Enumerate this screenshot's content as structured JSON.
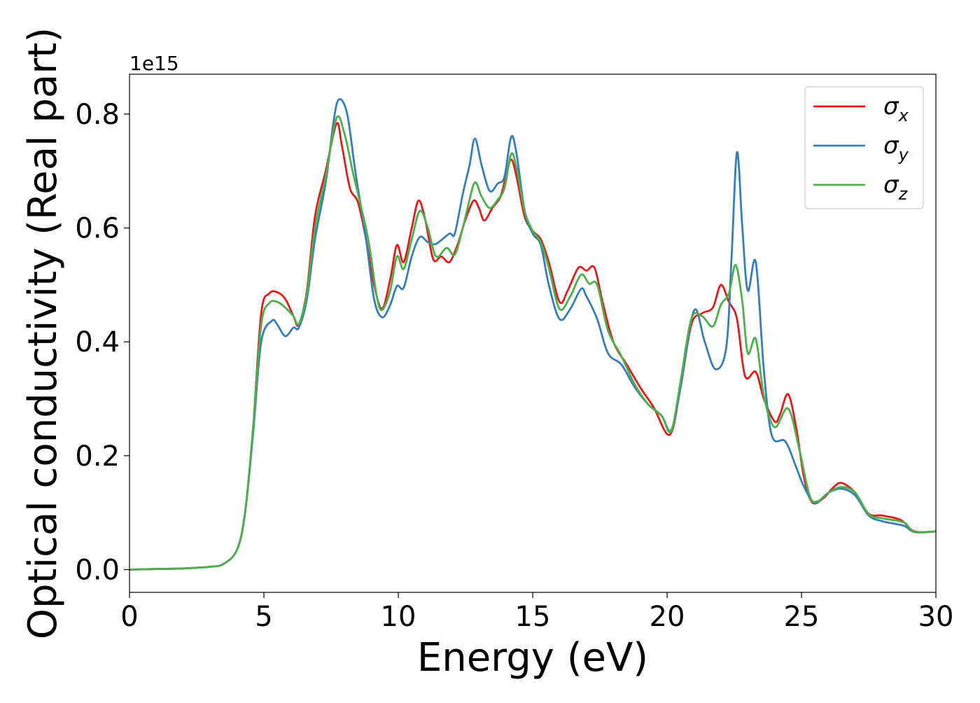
{
  "chart_data": {
    "type": "line",
    "title": "",
    "xlabel": "Energy (eV)",
    "ylabel": "Optical conductivity (Real part)",
    "y_offset_label": "1e15",
    "y_scale": 1000000000000000.0,
    "xlim": [
      0,
      30
    ],
    "ylim": [
      -0.04,
      0.87
    ],
    "xticks": [
      0,
      5,
      10,
      15,
      20,
      25,
      30
    ],
    "xtick_labels": [
      "0",
      "5",
      "10",
      "15",
      "20",
      "25",
      "30"
    ],
    "yticks": [
      0.0,
      0.2,
      0.4,
      0.6,
      0.8
    ],
    "ytick_labels": [
      "0.0",
      "0.2",
      "0.4",
      "0.6",
      "0.8"
    ],
    "grid": false,
    "legend_position": "top-right",
    "series": [
      {
        "name": "σx",
        "legend_symbol": "σ",
        "legend_subscript": "x",
        "color": "#e41a1c",
        "points": [
          [
            0,
            0.0
          ],
          [
            1,
            0.001
          ],
          [
            2,
            0.002
          ],
          [
            3,
            0.005
          ],
          [
            3.5,
            0.01
          ],
          [
            4.0,
            0.035
          ],
          [
            4.3,
            0.1
          ],
          [
            4.6,
            0.25
          ],
          [
            4.9,
            0.45
          ],
          [
            5.2,
            0.485
          ],
          [
            5.5,
            0.487
          ],
          [
            5.8,
            0.475
          ],
          [
            6.1,
            0.445
          ],
          [
            6.3,
            0.43
          ],
          [
            6.6,
            0.49
          ],
          [
            6.9,
            0.62
          ],
          [
            7.3,
            0.7
          ],
          [
            7.7,
            0.783
          ],
          [
            7.9,
            0.745
          ],
          [
            8.2,
            0.67
          ],
          [
            8.5,
            0.645
          ],
          [
            8.8,
            0.58
          ],
          [
            9.1,
            0.5
          ],
          [
            9.4,
            0.458
          ],
          [
            9.7,
            0.51
          ],
          [
            9.95,
            0.57
          ],
          [
            10.2,
            0.54
          ],
          [
            10.5,
            0.6
          ],
          [
            10.75,
            0.648
          ],
          [
            11.0,
            0.615
          ],
          [
            11.3,
            0.545
          ],
          [
            11.6,
            0.55
          ],
          [
            11.9,
            0.54
          ],
          [
            12.2,
            0.57
          ],
          [
            12.5,
            0.615
          ],
          [
            12.8,
            0.648
          ],
          [
            13.0,
            0.635
          ],
          [
            13.2,
            0.613
          ],
          [
            13.5,
            0.635
          ],
          [
            13.8,
            0.655
          ],
          [
            14.0,
            0.69
          ],
          [
            14.2,
            0.72
          ],
          [
            14.4,
            0.69
          ],
          [
            14.7,
            0.62
          ],
          [
            15.0,
            0.595
          ],
          [
            15.3,
            0.58
          ],
          [
            15.6,
            0.54
          ],
          [
            16.0,
            0.47
          ],
          [
            16.3,
            0.49
          ],
          [
            16.7,
            0.53
          ],
          [
            17.0,
            0.525
          ],
          [
            17.3,
            0.53
          ],
          [
            17.6,
            0.47
          ],
          [
            18.0,
            0.4
          ],
          [
            18.5,
            0.36
          ],
          [
            19.0,
            0.32
          ],
          [
            19.5,
            0.285
          ],
          [
            20.1,
            0.237
          ],
          [
            20.5,
            0.32
          ],
          [
            20.9,
            0.43
          ],
          [
            21.3,
            0.45
          ],
          [
            21.7,
            0.46
          ],
          [
            22.0,
            0.5
          ],
          [
            22.3,
            0.47
          ],
          [
            22.6,
            0.44
          ],
          [
            22.9,
            0.34
          ],
          [
            23.3,
            0.347
          ],
          [
            23.6,
            0.3
          ],
          [
            24.0,
            0.26
          ],
          [
            24.2,
            0.272
          ],
          [
            24.5,
            0.308
          ],
          [
            24.8,
            0.25
          ],
          [
            25.1,
            0.16
          ],
          [
            25.4,
            0.118
          ],
          [
            25.8,
            0.125
          ],
          [
            26.2,
            0.145
          ],
          [
            26.5,
            0.152
          ],
          [
            27.0,
            0.135
          ],
          [
            27.5,
            0.098
          ],
          [
            28.0,
            0.095
          ],
          [
            28.7,
            0.087
          ],
          [
            29.2,
            0.067
          ],
          [
            30.0,
            0.067
          ]
        ]
      },
      {
        "name": "σy",
        "legend_symbol": "σ",
        "legend_subscript": "y",
        "color": "#377eb8",
        "points": [
          [
            0,
            0.0
          ],
          [
            1,
            0.001
          ],
          [
            2,
            0.002
          ],
          [
            3,
            0.005
          ],
          [
            3.5,
            0.01
          ],
          [
            4.0,
            0.035
          ],
          [
            4.3,
            0.1
          ],
          [
            4.6,
            0.24
          ],
          [
            4.9,
            0.4
          ],
          [
            5.3,
            0.437
          ],
          [
            5.5,
            0.43
          ],
          [
            5.8,
            0.41
          ],
          [
            6.1,
            0.425
          ],
          [
            6.3,
            0.425
          ],
          [
            6.6,
            0.475
          ],
          [
            6.9,
            0.58
          ],
          [
            7.3,
            0.68
          ],
          [
            7.6,
            0.79
          ],
          [
            7.8,
            0.826
          ],
          [
            8.1,
            0.8
          ],
          [
            8.4,
            0.7
          ],
          [
            8.8,
            0.58
          ],
          [
            9.1,
            0.475
          ],
          [
            9.4,
            0.443
          ],
          [
            9.7,
            0.465
          ],
          [
            9.95,
            0.498
          ],
          [
            10.2,
            0.495
          ],
          [
            10.5,
            0.55
          ],
          [
            10.8,
            0.584
          ],
          [
            11.1,
            0.575
          ],
          [
            11.4,
            0.572
          ],
          [
            11.9,
            0.59
          ],
          [
            12.1,
            0.59
          ],
          [
            12.4,
            0.66
          ],
          [
            12.65,
            0.71
          ],
          [
            12.85,
            0.757
          ],
          [
            13.1,
            0.71
          ],
          [
            13.4,
            0.665
          ],
          [
            13.7,
            0.678
          ],
          [
            13.95,
            0.69
          ],
          [
            14.2,
            0.76
          ],
          [
            14.4,
            0.73
          ],
          [
            14.7,
            0.63
          ],
          [
            15.0,
            0.59
          ],
          [
            15.3,
            0.57
          ],
          [
            15.6,
            0.5
          ],
          [
            16.0,
            0.44
          ],
          [
            16.4,
            0.458
          ],
          [
            16.8,
            0.493
          ],
          [
            17.0,
            0.48
          ],
          [
            17.4,
            0.44
          ],
          [
            17.8,
            0.38
          ],
          [
            18.3,
            0.36
          ],
          [
            18.8,
            0.32
          ],
          [
            19.3,
            0.29
          ],
          [
            19.8,
            0.27
          ],
          [
            20.15,
            0.245
          ],
          [
            20.5,
            0.32
          ],
          [
            21.0,
            0.455
          ],
          [
            21.4,
            0.4
          ],
          [
            21.8,
            0.352
          ],
          [
            22.2,
            0.39
          ],
          [
            22.4,
            0.55
          ],
          [
            22.6,
            0.733
          ],
          [
            22.8,
            0.6
          ],
          [
            23.0,
            0.49
          ],
          [
            23.3,
            0.54
          ],
          [
            23.6,
            0.35
          ],
          [
            23.9,
            0.235
          ],
          [
            24.4,
            0.225
          ],
          [
            24.8,
            0.18
          ],
          [
            25.1,
            0.145
          ],
          [
            25.5,
            0.117
          ],
          [
            26.0,
            0.135
          ],
          [
            26.5,
            0.142
          ],
          [
            27.0,
            0.13
          ],
          [
            27.5,
            0.095
          ],
          [
            28.0,
            0.085
          ],
          [
            28.8,
            0.077
          ],
          [
            29.2,
            0.066
          ],
          [
            30.0,
            0.067
          ]
        ]
      },
      {
        "name": "σz",
        "legend_symbol": "σ",
        "legend_subscript": "z",
        "color": "#4daf4a",
        "points": [
          [
            0,
            0.0
          ],
          [
            1,
            0.001
          ],
          [
            2,
            0.002
          ],
          [
            3,
            0.005
          ],
          [
            3.5,
            0.01
          ],
          [
            4.0,
            0.035
          ],
          [
            4.3,
            0.1
          ],
          [
            4.6,
            0.25
          ],
          [
            4.9,
            0.43
          ],
          [
            5.2,
            0.468
          ],
          [
            5.5,
            0.47
          ],
          [
            5.8,
            0.46
          ],
          [
            6.1,
            0.445
          ],
          [
            6.3,
            0.432
          ],
          [
            6.6,
            0.485
          ],
          [
            6.9,
            0.6
          ],
          [
            7.3,
            0.69
          ],
          [
            7.7,
            0.793
          ],
          [
            8.0,
            0.765
          ],
          [
            8.3,
            0.7
          ],
          [
            8.6,
            0.64
          ],
          [
            8.9,
            0.575
          ],
          [
            9.2,
            0.48
          ],
          [
            9.4,
            0.456
          ],
          [
            9.7,
            0.49
          ],
          [
            9.95,
            0.55
          ],
          [
            10.2,
            0.528
          ],
          [
            10.5,
            0.58
          ],
          [
            10.8,
            0.63
          ],
          [
            11.1,
            0.6
          ],
          [
            11.4,
            0.55
          ],
          [
            11.8,
            0.565
          ],
          [
            12.1,
            0.553
          ],
          [
            12.4,
            0.6
          ],
          [
            12.6,
            0.64
          ],
          [
            12.85,
            0.68
          ],
          [
            13.1,
            0.655
          ],
          [
            13.4,
            0.635
          ],
          [
            13.7,
            0.65
          ],
          [
            13.95,
            0.67
          ],
          [
            14.2,
            0.73
          ],
          [
            14.4,
            0.705
          ],
          [
            14.7,
            0.63
          ],
          [
            15.0,
            0.595
          ],
          [
            15.3,
            0.575
          ],
          [
            15.6,
            0.53
          ],
          [
            16.0,
            0.458
          ],
          [
            16.4,
            0.48
          ],
          [
            16.8,
            0.518
          ],
          [
            17.1,
            0.502
          ],
          [
            17.4,
            0.5
          ],
          [
            17.8,
            0.42
          ],
          [
            18.3,
            0.375
          ],
          [
            18.8,
            0.325
          ],
          [
            19.3,
            0.29
          ],
          [
            19.8,
            0.27
          ],
          [
            20.15,
            0.243
          ],
          [
            20.5,
            0.33
          ],
          [
            20.9,
            0.44
          ],
          [
            21.3,
            0.445
          ],
          [
            21.7,
            0.427
          ],
          [
            22.0,
            0.465
          ],
          [
            22.3,
            0.485
          ],
          [
            22.55,
            0.535
          ],
          [
            22.8,
            0.47
          ],
          [
            23.0,
            0.38
          ],
          [
            23.3,
            0.405
          ],
          [
            23.6,
            0.305
          ],
          [
            24.0,
            0.25
          ],
          [
            24.5,
            0.283
          ],
          [
            24.9,
            0.215
          ],
          [
            25.3,
            0.13
          ],
          [
            25.6,
            0.12
          ],
          [
            26.0,
            0.135
          ],
          [
            26.5,
            0.145
          ],
          [
            27.0,
            0.135
          ],
          [
            27.5,
            0.097
          ],
          [
            28.0,
            0.09
          ],
          [
            28.8,
            0.083
          ],
          [
            29.2,
            0.066
          ],
          [
            30.0,
            0.067
          ]
        ]
      }
    ]
  }
}
